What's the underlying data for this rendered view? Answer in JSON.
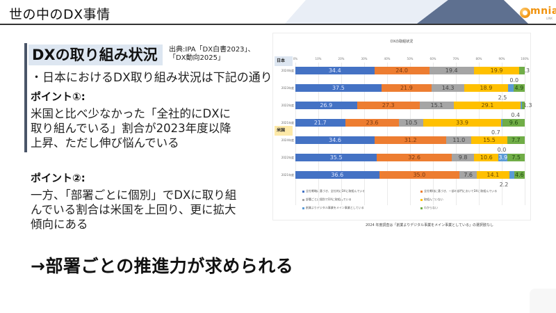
{
  "header": {
    "title": "世の中のDX事情",
    "logo_text": "mnia",
    "logo_sub": "LINK"
  },
  "section": {
    "title": "DXの取り組み状況",
    "source_line1": "出典:IPA「DX白書2023」、",
    "source_line2": "「DX動向2025」",
    "bullet": "・日本におけるDX取り組み状況は下記の通り"
  },
  "points": [
    {
      "title": "ポイント①:",
      "body": "米国と比べ少なかった「全社的にDXに\n取り組んでいる」割合が2023年度以降\n上昇、ただし伸び悩んでいる"
    },
    {
      "title": "ポイント②:",
      "body": "一方、「部署ごとに個別」でDXに取り組\nんでいる割合は米国を上回り、更に拡大\n傾向にある"
    }
  ],
  "conclusion": "→部署ごとの推進力が求められる",
  "chart_note": "2024 年度調査は「創業よりデジタル事業をメイン事業としている」の選択肢なし",
  "chart_data": {
    "type": "bar",
    "stacked": true,
    "orientation": "horizontal",
    "title": "DXの取組状況",
    "xlim": [
      0,
      100
    ],
    "x_ticks": [
      "0%",
      "10%",
      "20%",
      "30%",
      "40%",
      "50%",
      "60%",
      "70%",
      "80%",
      "90%",
      "100%"
    ],
    "groups": [
      {
        "name": "日本",
        "color": "#dde6f1",
        "categories": [
          "2024年度",
          "2023年度",
          "2022年度",
          "2021年度"
        ]
      },
      {
        "name": "米国",
        "color": "#fde9a8",
        "categories": [
          "2024年度",
          "2022年度",
          "2021年度"
        ]
      }
    ],
    "categories": [
      "日本 2024年度",
      "日本 2023年度",
      "日本 2022年度",
      "日本 2021年度",
      "米国 2024年度",
      "米国 2022年度",
      "米国 2021年度"
    ],
    "series": [
      {
        "name": "全社戦略に基づき、全社的にDXに取組んでいる",
        "color": "#4472c4",
        "values": [
          34.4,
          37.5,
          26.9,
          21.7,
          34.6,
          35.5,
          36.6
        ]
      },
      {
        "name": "全社戦略に基づき、一部の部門においてDXに取組んでいる",
        "color": "#ed7d31",
        "values": [
          24.0,
          21.9,
          27.3,
          23.6,
          31.2,
          32.6,
          35.0
        ]
      },
      {
        "name": "部署ごとに個別でDXに取組んでいる",
        "color": "#a5a5a5",
        "values": [
          19.4,
          14.3,
          15.1,
          10.5,
          11.0,
          9.8,
          7.6
        ]
      },
      {
        "name": "取組んでいない",
        "color": "#ffc000",
        "values": [
          19.9,
          18.9,
          29.1,
          33.9,
          15.5,
          10.6,
          14.1
        ]
      },
      {
        "name": "創業よりデジタル事業をメイン事業としている",
        "color": "#5b9bd5",
        "values": [
          0.0,
          2.5,
          0.4,
          0.7,
          0.0,
          3.9,
          2.2
        ]
      },
      {
        "name": "わからない",
        "color": "#70ad47",
        "values": [
          2.3,
          4.9,
          1.3,
          9.6,
          7.7,
          7.5,
          4.6
        ]
      }
    ],
    "data_labels": true,
    "legend_position": "bottom",
    "xlabel": "",
    "ylabel": ""
  }
}
